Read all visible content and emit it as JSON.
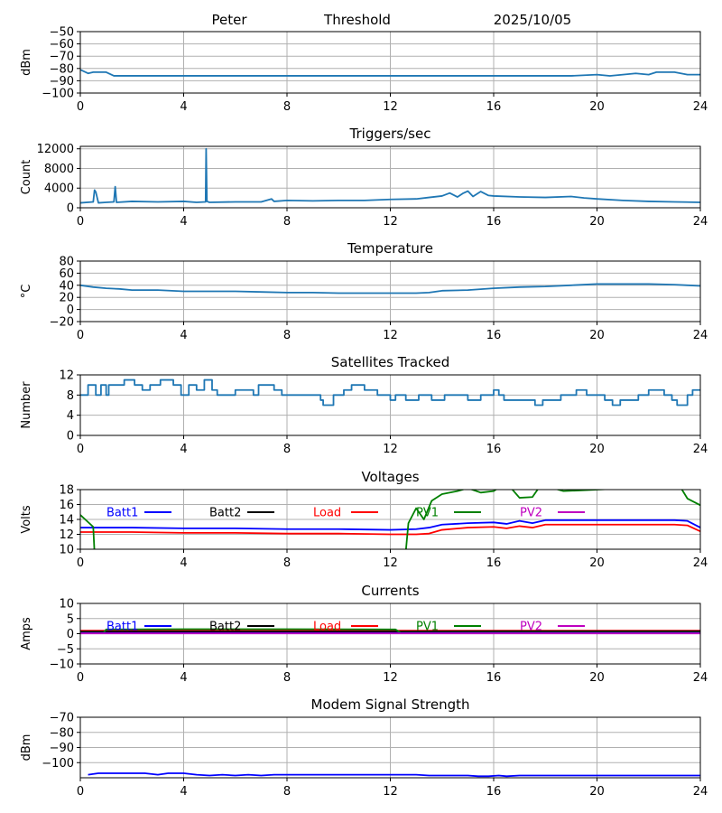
{
  "header": {
    "station": "Peter",
    "mode": "Threshold",
    "date": "2025/10/05"
  },
  "colors": {
    "default": "#1f77b4",
    "grid": "#b0b0b0",
    "batt1": "#0000ff",
    "batt2": "#000000",
    "load": "#ff0000",
    "pv1": "#008000",
    "pv2": "#bf00bf"
  },
  "chart_data": [
    {
      "id": "threshold",
      "type": "line",
      "title": "",
      "ylabel": "dBm",
      "xlim": [
        0,
        24
      ],
      "ylim": [
        -100,
        -50
      ],
      "xticks": [
        0,
        4,
        8,
        12,
        16,
        20,
        24
      ],
      "yticks": [
        -100,
        -90,
        -80,
        -70,
        -60,
        -50
      ],
      "ytick_labels": [
        "−100",
        "−90",
        "−80",
        "−70",
        "−60",
        "−50"
      ],
      "grid": true,
      "series": [
        {
          "color": "default",
          "x": [
            0,
            0.3,
            0.5,
            1.0,
            1.3,
            2,
            3,
            4,
            5,
            6,
            7,
            8,
            9,
            10,
            11,
            12,
            13,
            14,
            15,
            16,
            17,
            18,
            19,
            20,
            20.5,
            21,
            21.5,
            22,
            22.3,
            22.5,
            23,
            23.5,
            24
          ],
          "y": [
            -81,
            -84,
            -83,
            -83,
            -86,
            -86,
            -86,
            -86,
            -86,
            -86,
            -86,
            -86,
            -86,
            -86,
            -86,
            -86,
            -86,
            -86,
            -86,
            -86,
            -86,
            -86,
            -86,
            -85,
            -86,
            -85,
            -84,
            -85,
            -83,
            -83,
            -83,
            -85,
            -85
          ]
        }
      ]
    },
    {
      "id": "triggers",
      "type": "line",
      "title": "Triggers/sec",
      "ylabel": "Count",
      "xlim": [
        0,
        24
      ],
      "ylim": [
        0,
        12500
      ],
      "xticks": [
        0,
        4,
        8,
        12,
        16,
        20,
        24
      ],
      "yticks": [
        0,
        4000,
        8000,
        12000
      ],
      "ytick_labels": [
        "0",
        "4000",
        "8000",
        "12000"
      ],
      "grid": true,
      "series": [
        {
          "color": "default",
          "x": [
            0,
            0.5,
            0.55,
            0.6,
            0.7,
            1.0,
            1.3,
            1.35,
            1.4,
            2,
            3,
            4,
            4.5,
            4.85,
            4.87,
            4.9,
            5,
            6,
            7,
            7.4,
            7.5,
            8,
            9,
            10,
            11,
            12,
            13,
            13.5,
            14,
            14.3,
            14.6,
            14.8,
            15,
            15.2,
            15.5,
            15.8,
            16,
            17,
            18,
            19,
            19.5,
            20,
            21,
            22,
            23,
            24
          ],
          "y": [
            1000,
            1200,
            3600,
            3200,
            1000,
            1100,
            1200,
            4300,
            1100,
            1300,
            1200,
            1300,
            1100,
            1200,
            12000,
            1300,
            1100,
            1200,
            1200,
            1800,
            1300,
            1500,
            1400,
            1500,
            1500,
            1700,
            1800,
            2100,
            2400,
            3000,
            2200,
            2900,
            3400,
            2300,
            3300,
            2500,
            2400,
            2200,
            2100,
            2300,
            2000,
            1800,
            1500,
            1300,
            1200,
            1100
          ]
        }
      ]
    },
    {
      "id": "temperature",
      "type": "line",
      "title": "Temperature",
      "ylabel": "°C",
      "xlim": [
        0,
        24
      ],
      "ylim": [
        -20,
        80
      ],
      "xticks": [
        0,
        4,
        8,
        12,
        16,
        20,
        24
      ],
      "yticks": [
        -20,
        0,
        20,
        40,
        60,
        80
      ],
      "ytick_labels": [
        "−20",
        "0",
        "20",
        "40",
        "60",
        "80"
      ],
      "grid": true,
      "series": [
        {
          "color": "default",
          "x": [
            0,
            0.5,
            1,
            1.5,
            2,
            3,
            4,
            6,
            7,
            8,
            9,
            10,
            12,
            13,
            13.5,
            14,
            15,
            16,
            17,
            18,
            19,
            20,
            21,
            22,
            23,
            23.5,
            24
          ],
          "y": [
            40,
            37,
            35,
            34,
            32,
            32,
            30,
            30,
            29,
            28,
            28,
            27,
            27,
            27,
            28,
            31,
            32,
            35,
            37,
            38,
            40,
            42,
            42,
            42,
            41,
            40,
            39
          ]
        }
      ]
    },
    {
      "id": "satellites",
      "type": "step",
      "title": "Satellites Tracked",
      "ylabel": "Number",
      "xlim": [
        0,
        24
      ],
      "ylim": [
        0,
        12
      ],
      "xticks": [
        0,
        4,
        8,
        12,
        16,
        20,
        24
      ],
      "yticks": [
        0,
        4,
        8,
        12
      ],
      "ytick_labels": [
        "0",
        "4",
        "8",
        "12"
      ],
      "grid": true,
      "series": [
        {
          "color": "default",
          "x": [
            0,
            0.3,
            0.6,
            0.8,
            1.0,
            1.1,
            1.5,
            1.7,
            2.1,
            2.4,
            2.7,
            3.0,
            3.1,
            3.6,
            3.9,
            4.2,
            4.5,
            4.8,
            5.1,
            5.3,
            5.5,
            6.0,
            6.5,
            6.7,
            6.9,
            7.5,
            7.8,
            8.2,
            8.5,
            9.0,
            9.3,
            9.4,
            9.8,
            10.2,
            10.5,
            11.0,
            11.5,
            12.0,
            12.2,
            12.6,
            13.1,
            13.6,
            14.1,
            14.5,
            15.0,
            15.5,
            16.0,
            16.2,
            16.4,
            16.7,
            17.0,
            17.6,
            17.9,
            18.2,
            18.6,
            19.2,
            19.6,
            19.9,
            20.3,
            20.6,
            20.9,
            21.3,
            21.6,
            22.0,
            22.6,
            22.9,
            23.1,
            23.5,
            23.7,
            24.0
          ],
          "y": [
            8,
            10,
            8,
            10,
            8,
            10,
            10,
            11,
            10,
            9,
            10,
            10,
            11,
            10,
            8,
            10,
            9,
            11,
            9,
            8,
            8,
            9,
            9,
            8,
            10,
            9,
            8,
            8,
            8,
            8,
            7,
            6,
            8,
            9,
            10,
            9,
            8,
            7,
            8,
            7,
            8,
            7,
            8,
            8,
            7,
            8,
            9,
            8,
            7,
            7,
            7,
            6,
            7,
            7,
            8,
            9,
            8,
            8,
            7,
            6,
            7,
            7,
            8,
            9,
            8,
            7,
            6,
            8,
            9,
            9
          ]
        }
      ]
    },
    {
      "id": "voltages",
      "type": "line",
      "title": "Voltages",
      "ylabel": "Volts",
      "xlim": [
        0,
        24
      ],
      "ylim": [
        10,
        18
      ],
      "xticks": [
        0,
        4,
        8,
        12,
        16,
        20,
        24
      ],
      "yticks": [
        10,
        12,
        14,
        16,
        18
      ],
      "ytick_labels": [
        "10",
        "12",
        "14",
        "16",
        "18"
      ],
      "grid": true,
      "legend": [
        {
          "label": "Batt1",
          "color": "batt1"
        },
        {
          "label": "Batt2",
          "color": "batt2"
        },
        {
          "label": "Load",
          "color": "load"
        },
        {
          "label": "PV1",
          "color": "pv1"
        },
        {
          "label": "PV2",
          "color": "pv2"
        }
      ],
      "series": [
        {
          "name": "Batt1",
          "color": "batt1",
          "x": [
            0,
            2,
            4,
            6,
            8,
            10,
            12,
            13,
            13.5,
            14,
            15,
            16,
            16.5,
            17,
            17.5,
            18,
            20,
            22,
            23,
            23.5,
            24
          ],
          "y": [
            12.9,
            12.9,
            12.8,
            12.8,
            12.7,
            12.7,
            12.6,
            12.7,
            12.9,
            13.3,
            13.5,
            13.6,
            13.4,
            13.8,
            13.5,
            13.9,
            13.9,
            13.9,
            13.9,
            13.8,
            12.9
          ]
        },
        {
          "name": "Load",
          "color": "load",
          "x": [
            0,
            2,
            4,
            6,
            8,
            10,
            12,
            13,
            13.5,
            14,
            15,
            16,
            16.5,
            17,
            17.5,
            18,
            20,
            22,
            23,
            23.5,
            24
          ],
          "y": [
            12.3,
            12.3,
            12.2,
            12.2,
            12.1,
            12.1,
            12.0,
            12.0,
            12.1,
            12.6,
            12.9,
            13.0,
            12.8,
            13.1,
            12.9,
            13.3,
            13.3,
            13.3,
            13.3,
            13.2,
            12.4
          ]
        },
        {
          "name": "PV1",
          "color": "pv1",
          "x": [
            0,
            0.5,
            0.6,
            12.5,
            12.7,
            13.0,
            13.3,
            13.6,
            14.0,
            14.6,
            15.0,
            15.5,
            16.0,
            16.3,
            16.6,
            17.0,
            17.5,
            17.8,
            18.0,
            18.7,
            23.2,
            23.5,
            24.0
          ],
          "y": [
            14.6,
            13.0,
            6.0,
            6.0,
            13.5,
            15.5,
            14.0,
            16.5,
            17.4,
            17.8,
            18.2,
            17.6,
            17.8,
            18.5,
            18.5,
            16.9,
            17.0,
            18.5,
            18.5,
            17.8,
            18.5,
            16.8,
            15.9
          ]
        }
      ]
    },
    {
      "id": "currents",
      "type": "line",
      "title": "Currents",
      "ylabel": "Amps",
      "xlim": [
        0,
        24
      ],
      "ylim": [
        -10,
        10
      ],
      "xticks": [
        0,
        4,
        8,
        12,
        16,
        20,
        24
      ],
      "yticks": [
        -10,
        -5,
        0,
        5,
        10
      ],
      "ytick_labels": [
        "−10",
        "−5",
        "0",
        "5",
        "10"
      ],
      "grid": true,
      "legend": [
        {
          "label": "Batt1",
          "color": "batt1"
        },
        {
          "label": "Batt2",
          "color": "batt2"
        },
        {
          "label": "Load",
          "color": "load"
        },
        {
          "label": "PV1",
          "color": "pv1"
        },
        {
          "label": "PV2",
          "color": "pv2"
        }
      ],
      "series": [
        {
          "name": "Load",
          "color": "load",
          "x": [
            0,
            4,
            8,
            12,
            16,
            20,
            24
          ],
          "y": [
            1.0,
            1.0,
            1.0,
            1.0,
            1.0,
            1.0,
            1.0
          ]
        },
        {
          "name": "Batt2",
          "color": "batt2",
          "x": [
            0,
            4,
            8,
            12,
            16,
            20,
            24
          ],
          "y": [
            0.7,
            0.7,
            0.7,
            0.7,
            0.8,
            0.8,
            0.8
          ]
        },
        {
          "name": "PV1",
          "color": "pv1",
          "x": [
            0,
            0.9,
            1.0,
            4,
            8,
            12.2,
            12.4,
            13,
            24
          ],
          "y": [
            0.3,
            0.3,
            1.4,
            1.5,
            1.5,
            1.4,
            0.3,
            0.3,
            0.3
          ]
        },
        {
          "name": "Batt1",
          "color": "batt1",
          "x": [
            0,
            24
          ],
          "y": [
            0.2,
            0.2
          ]
        },
        {
          "name": "PV2",
          "color": "pv2",
          "x": [
            0,
            24
          ],
          "y": [
            0.1,
            0.1
          ]
        }
      ]
    },
    {
      "id": "modem",
      "type": "line",
      "title": "Modem Signal Strength",
      "ylabel": "dBm",
      "xlim": [
        0,
        24
      ],
      "ylim": [
        -110,
        -70
      ],
      "xticks": [
        0,
        4,
        8,
        12,
        16,
        20,
        24
      ],
      "yticks": [
        -100,
        -90,
        -80,
        -70
      ],
      "ytick_labels": [
        "−100",
        "−90",
        "−80",
        "−70"
      ],
      "grid": true,
      "series": [
        {
          "color": "batt1",
          "x": [
            0.3,
            0.7,
            1.5,
            2.5,
            3.0,
            3.4,
            4.0,
            4.5,
            5.0,
            5.5,
            6.0,
            6.5,
            7.0,
            7.5,
            8.0,
            10,
            12,
            12.5,
            13.0,
            13.5,
            14,
            15,
            15.4,
            15.8,
            16.2,
            16.5,
            17.0,
            18,
            20,
            22,
            24
          ],
          "y": [
            -108,
            -107,
            -107,
            -107,
            -108,
            -107,
            -107,
            -108,
            -108.5,
            -108,
            -108.5,
            -108,
            -108.5,
            -108,
            -108,
            -108,
            -108,
            -108,
            -108,
            -108.5,
            -108.5,
            -108.5,
            -109,
            -109,
            -108.5,
            -109,
            -108.5,
            -108.5,
            -108.5,
            -108.5,
            -108.5
          ]
        }
      ]
    }
  ]
}
